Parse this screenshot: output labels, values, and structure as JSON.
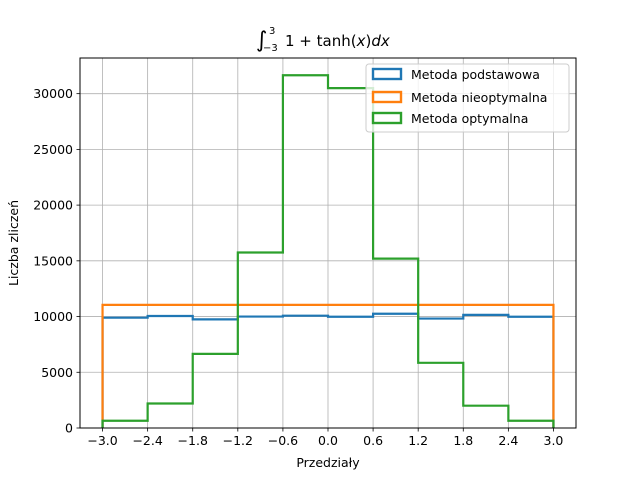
{
  "chart_data": {
    "type": "histogram",
    "title": "∫₋₃³ 1 + tanh(x)dx",
    "title_parts": {
      "integral": "∫",
      "lower": "−3",
      "upper": "3",
      "body": "1 + tanh(",
      "var": "x",
      "close": ")",
      "d": "dx"
    },
    "xlabel": "Przedziały",
    "ylabel": "Liczba zliczeń",
    "xlim": [
      -3.3,
      3.3
    ],
    "ylim": [
      0,
      33200
    ],
    "grid": true,
    "legend_position": "top-right",
    "bin_edges": [
      -3.0,
      -2.4,
      -1.8,
      -1.2,
      -0.6,
      0.0,
      0.6,
      1.2,
      1.8,
      2.4,
      3.0
    ],
    "xtick_values": [
      -3.0,
      -2.4,
      -1.8,
      -1.2,
      -0.6,
      0.0,
      0.6,
      1.2,
      1.8,
      2.4,
      3.0
    ],
    "xtick_labels": [
      "−3.0",
      "−2.4",
      "−1.8",
      "−1.2",
      "−0.6",
      "0.0",
      "0.6",
      "1.2",
      "1.8",
      "2.4",
      "3.0"
    ],
    "ytick_values": [
      0,
      5000,
      10000,
      15000,
      20000,
      25000,
      30000
    ],
    "ytick_labels": [
      "0",
      "5000",
      "10000",
      "15000",
      "20000",
      "25000",
      "30000"
    ],
    "series": [
      {
        "name": "Metoda podstawowa",
        "color": "#1f77b4",
        "values": [
          9900,
          10050,
          9750,
          10000,
          10080,
          9980,
          10250,
          9820,
          10150,
          9980
        ]
      },
      {
        "name": "Metoda nieoptymalna",
        "color": "#ff7f0e",
        "values": [
          11050,
          11050,
          11050,
          11050,
          11050,
          11050,
          11050,
          11050,
          11050,
          11050
        ]
      },
      {
        "name": "Metoda optymalna",
        "color": "#2ca02c",
        "values": [
          650,
          2200,
          6650,
          15750,
          31650,
          30500,
          15200,
          5850,
          2000,
          650
        ]
      }
    ]
  }
}
